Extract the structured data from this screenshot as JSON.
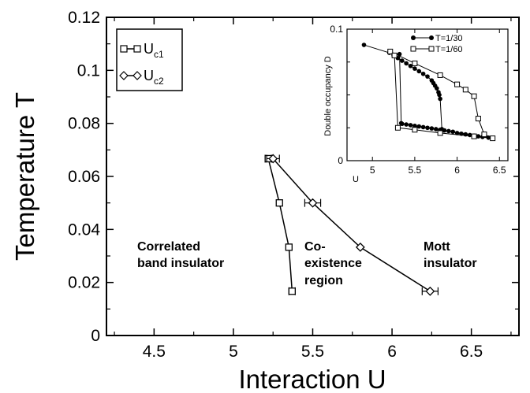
{
  "chart_data": [
    {
      "type": "line",
      "xlabel": "Interaction U",
      "ylabel": "Temperature T",
      "xlim": [
        4.2,
        6.8
      ],
      "ylim": [
        0,
        0.12
      ],
      "xticks": [
        "4.5",
        "5",
        "5.5",
        "6",
        "6.5"
      ],
      "yticks": [
        "0",
        "0.02",
        "0.04",
        "0.06",
        "0.08",
        "0.1",
        "0.12"
      ],
      "legend_position": "top-left",
      "legend": [
        {
          "name": "U",
          "sub": "c1",
          "marker": "square"
        },
        {
          "name": "U",
          "sub": "c2",
          "marker": "diamond"
        }
      ],
      "series": [
        {
          "name": "Uc1",
          "marker": "square",
          "points": [
            [
              5.22,
              0.0667
            ],
            [
              5.29,
              0.05
            ],
            [
              5.35,
              0.0333
            ],
            [
              5.37,
              0.0167
            ]
          ],
          "xerr": [
            0.02,
            0.0,
            0.0,
            0.02
          ]
        },
        {
          "name": "Uc2",
          "marker": "diamond",
          "points": [
            [
              5.25,
              0.0667
            ],
            [
              5.5,
              0.05
            ],
            [
              5.8,
              0.0333
            ],
            [
              6.24,
              0.0167
            ]
          ],
          "xerr": [
            0.04,
            0.05,
            0.0,
            0.05
          ]
        }
      ],
      "annotations": [
        {
          "lines": [
            "Correlated",
            "band insulator"
          ]
        },
        {
          "lines": [
            "Co-",
            "existence",
            "region"
          ]
        },
        {
          "lines": [
            "Mott",
            "insulator"
          ]
        }
      ]
    },
    {
      "type": "line",
      "inset": true,
      "xlabel": "U",
      "ylabel": "Double occupancy D",
      "xlim": [
        4.7,
        6.6
      ],
      "ylim": [
        0,
        0.1
      ],
      "xticks": [
        "5",
        "5.5",
        "6",
        "6.5"
      ],
      "yticks": [
        "0",
        "0.1"
      ],
      "legend_position": "top-right",
      "series": [
        {
          "name": "T=1/30",
          "marker": "filled-circle",
          "points": [
            [
              4.9,
              0.088
            ],
            [
              5.2,
              0.082
            ],
            [
              5.25,
              0.08
            ],
            [
              5.3,
              0.078
            ],
            [
              5.35,
              0.076
            ],
            [
              5.4,
              0.074
            ],
            [
              5.45,
              0.072
            ],
            [
              5.5,
              0.07
            ],
            [
              5.55,
              0.068
            ],
            [
              5.6,
              0.066
            ],
            [
              5.65,
              0.064
            ],
            [
              5.7,
              0.061
            ],
            [
              5.72,
              0.059
            ],
            [
              5.74,
              0.057
            ],
            [
              5.76,
              0.055
            ],
            [
              5.78,
              0.052
            ],
            [
              5.79,
              0.05
            ],
            [
              5.8,
              0.047
            ],
            [
              5.82,
              0.024
            ],
            [
              5.85,
              0.023
            ],
            [
              5.9,
              0.0225
            ],
            [
              5.95,
              0.022
            ],
            [
              6.0,
              0.021
            ],
            [
              6.05,
              0.0205
            ],
            [
              6.1,
              0.02
            ],
            [
              6.15,
              0.0195
            ],
            [
              6.2,
              0.019
            ],
            [
              6.25,
              0.0185
            ],
            [
              6.3,
              0.018
            ],
            [
              6.37,
              0.0175
            ],
            [
              5.8,
              0.0235
            ],
            [
              5.75,
              0.024
            ],
            [
              5.7,
              0.0245
            ],
            [
              5.65,
              0.025
            ],
            [
              5.6,
              0.0255
            ],
            [
              5.55,
              0.026
            ],
            [
              5.5,
              0.0265
            ],
            [
              5.45,
              0.027
            ],
            [
              5.4,
              0.0275
            ],
            [
              5.35,
              0.028
            ],
            [
              5.34,
              0.0285
            ],
            [
              5.32,
              0.081
            ]
          ]
        },
        {
          "name": "T=1/60",
          "marker": "open-square",
          "points": [
            [
              5.21,
              0.083
            ],
            [
              5.5,
              0.074
            ],
            [
              5.8,
              0.065
            ],
            [
              6.0,
              0.058
            ],
            [
              6.1,
              0.054
            ],
            [
              6.2,
              0.049
            ],
            [
              6.25,
              0.032
            ],
            [
              6.32,
              0.02
            ],
            [
              6.42,
              0.017
            ],
            [
              6.2,
              0.0185
            ],
            [
              5.8,
              0.021
            ],
            [
              5.5,
              0.0235
            ],
            [
              5.3,
              0.025
            ],
            [
              5.26,
              0.08
            ]
          ]
        }
      ]
    }
  ]
}
